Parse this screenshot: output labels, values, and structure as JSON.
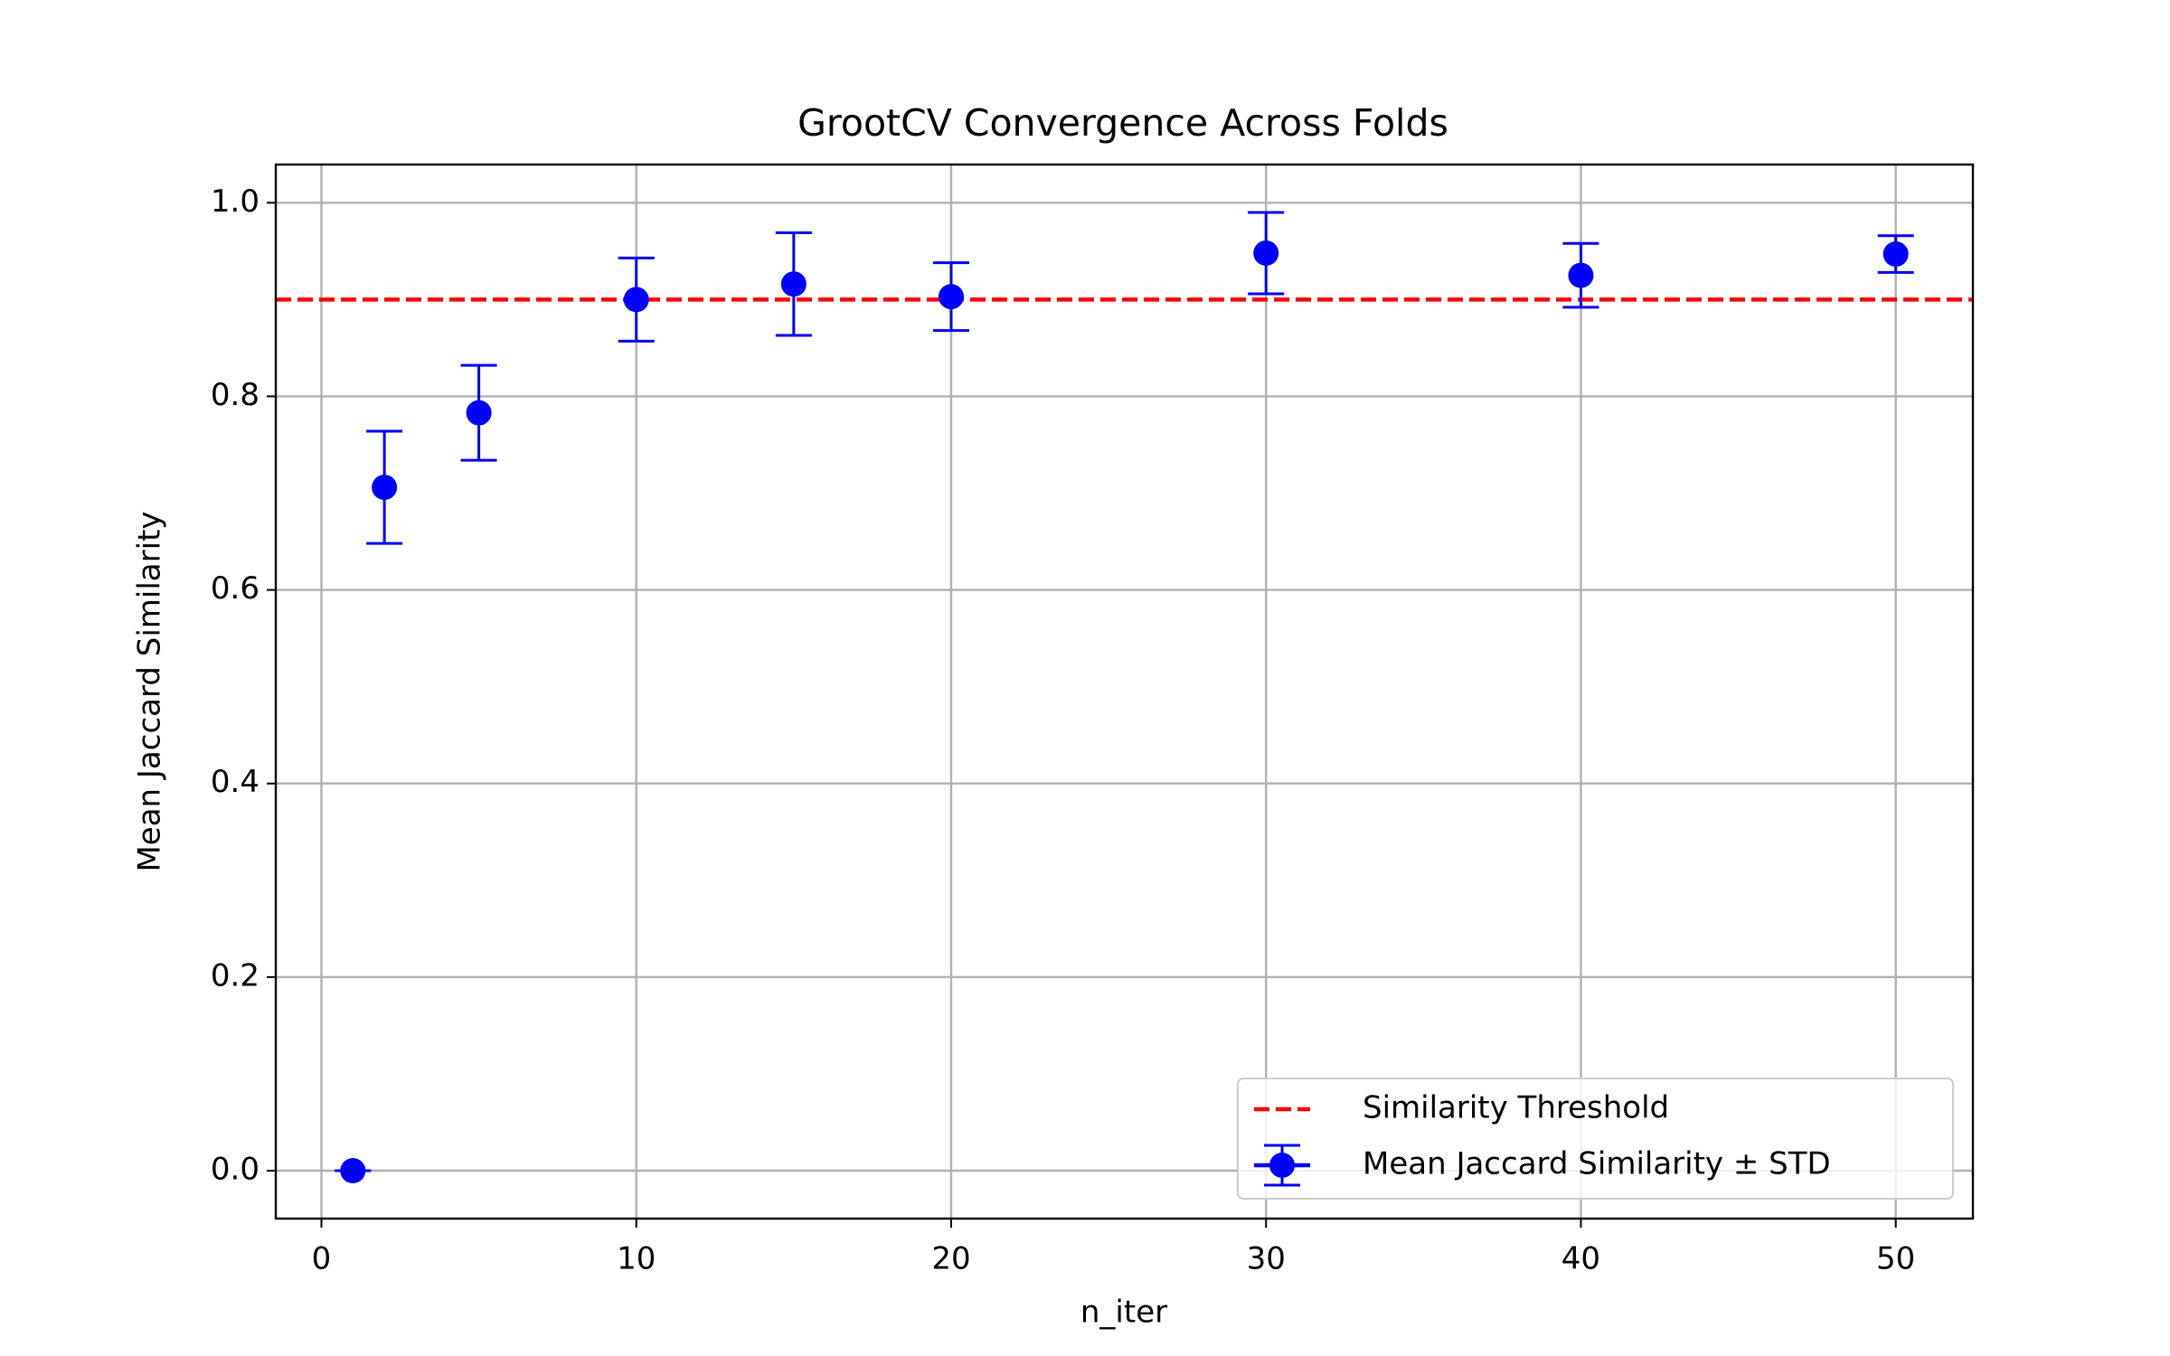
{
  "chart_data": {
    "type": "errorbar-line",
    "title": "GrootCV Convergence Across Folds",
    "x_label": "n_iter",
    "y_label": "Mean Jaccard Similarity",
    "x": [
      1,
      2,
      5,
      10,
      15,
      20,
      30,
      40,
      50
    ],
    "series": [
      {
        "name": "Mean Jaccard Similarity ± STD",
        "color": "#0000ff",
        "values": [
          0,
          0.706,
          0.783,
          0.9,
          0.916,
          0.903,
          0.948,
          0.925,
          0.947
        ],
        "errors": [
          0,
          0.058,
          0.049,
          0.043,
          0.053,
          0.035,
          0.042,
          0.033,
          0.019
        ]
      }
    ],
    "threshold": {
      "name": "Similarity Threshold",
      "color": "#ff0000",
      "value": 0.9
    },
    "xlim": [
      -1.45,
      52.45
    ],
    "ylim": [
      -0.0495,
      1.0395
    ],
    "xticks": [
      0,
      10,
      20,
      30,
      40,
      50
    ],
    "yticks": [
      {
        "value": 0,
        "label": "0.0"
      },
      0.2,
      0.4,
      0.6,
      0.8,
      {
        "value": 1,
        "label": "1.0"
      }
    ],
    "grid": true,
    "legend": "lower right"
  }
}
